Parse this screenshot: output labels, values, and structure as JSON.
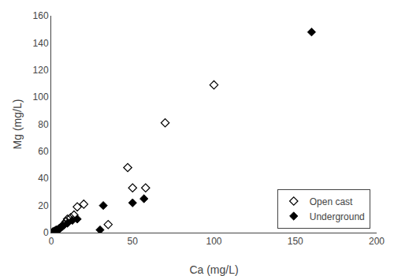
{
  "chart_data": {
    "type": "scatter",
    "xlabel": "Ca (mg/L)",
    "ylabel": "Mg (mg/L)",
    "series": [
      {
        "name": "Open cast",
        "color": "black",
        "marker": "diamond-open",
        "x": [
          1,
          2,
          3,
          4,
          5,
          6,
          7,
          8,
          9,
          10,
          12,
          14,
          16,
          20,
          35,
          47,
          50,
          58,
          70,
          100
        ],
        "values": [
          0.5,
          1,
          1.5,
          2,
          3,
          4,
          5,
          6,
          8,
          10,
          11,
          13,
          19,
          21,
          6,
          48,
          33,
          33,
          81,
          109
        ]
      },
      {
        "name": "Underground",
        "color": "black",
        "marker": "diamond",
        "x": [
          1,
          2,
          3,
          5,
          7,
          10,
          13,
          16,
          30,
          32,
          50,
          57,
          160
        ],
        "values": [
          0.5,
          1,
          2,
          3,
          5,
          7,
          9,
          10,
          2,
          20,
          22,
          25,
          148
        ]
      }
    ],
    "xlim": [
      0,
      200
    ],
    "ylim": [
      0,
      160
    ],
    "xticks": [
      0,
      50,
      100,
      150,
      200
    ],
    "yticks": [
      0,
      20,
      40,
      60,
      80,
      100,
      120,
      140,
      160
    ],
    "legend": "lower right",
    "grid": false
  }
}
